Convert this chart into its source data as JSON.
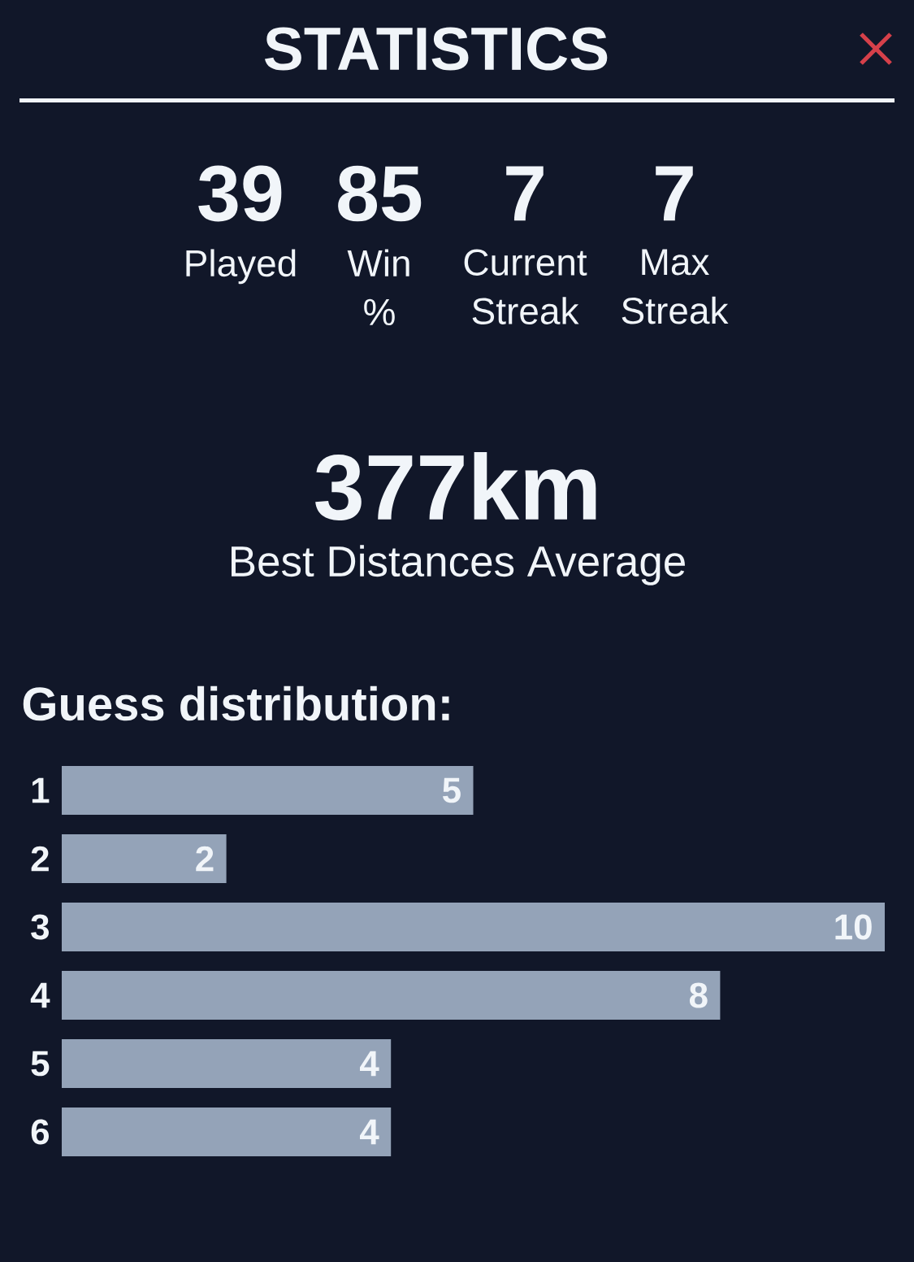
{
  "chart_data": [
    {
      "type": "other",
      "title": "STATISTICS",
      "annotations": [
        "39",
        "Played",
        "85",
        "Win %",
        "7",
        "Current Streak",
        "7",
        "Max Streak",
        "377km",
        "Best Distances Average"
      ]
    },
    {
      "type": "bar",
      "orientation": "horizontal",
      "title": "Guess distribution:",
      "categories": [
        "1",
        "2",
        "3",
        "4",
        "5",
        "6"
      ],
      "values": [
        5,
        2,
        10,
        8,
        4,
        4
      ],
      "color": "#94a3b8",
      "data_labels": true,
      "tick_labels": "y"
    }
  ]
}
